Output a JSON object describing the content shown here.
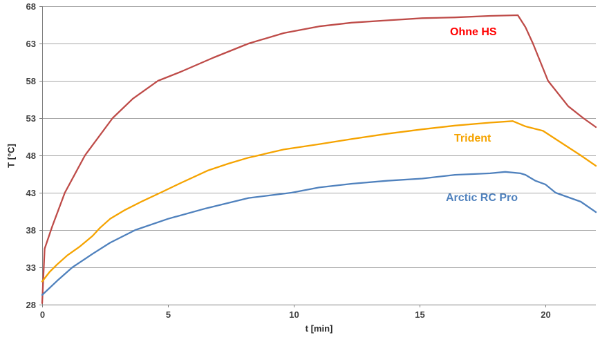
{
  "chart_data": {
    "type": "line",
    "title": "",
    "xlabel": "t [min]",
    "ylabel": "T [°C]",
    "xlim": [
      0,
      22
    ],
    "ylim": [
      28,
      68
    ],
    "xticks": [
      0,
      5,
      10,
      15,
      20
    ],
    "yticks": [
      28,
      33,
      38,
      43,
      48,
      53,
      58,
      63,
      68
    ],
    "grid": "horizontal",
    "legend_position": "inline-labels-on-chart",
    "colors": {
      "grid": "#a6a6a6",
      "axis": "#7f7f7f",
      "tick_text": "#404040"
    },
    "series": [
      {
        "name": "Ohne HS",
        "color": "#be4b48",
        "label_color": "#ff0000",
        "points": [
          [
            0,
            28.2
          ],
          [
            0.1,
            35.5
          ],
          [
            0.4,
            38.5
          ],
          [
            0.9,
            43
          ],
          [
            1.7,
            48
          ],
          [
            2.8,
            53
          ],
          [
            3.6,
            55.6
          ],
          [
            4.6,
            58
          ],
          [
            5.5,
            59.2
          ],
          [
            6.8,
            61.1
          ],
          [
            8.2,
            63
          ],
          [
            9.6,
            64.4
          ],
          [
            11,
            65.3
          ],
          [
            12.3,
            65.8
          ],
          [
            13.7,
            66.1
          ],
          [
            15.1,
            66.4
          ],
          [
            16.4,
            66.5
          ],
          [
            17.8,
            66.7
          ],
          [
            18.9,
            66.8
          ],
          [
            19.2,
            65.2
          ],
          [
            19.5,
            63
          ],
          [
            20.1,
            58
          ],
          [
            20.9,
            54.6
          ],
          [
            21.5,
            53
          ],
          [
            22,
            51.8
          ]
        ]
      },
      {
        "name": "Trident",
        "color": "#f5a300",
        "label_color": "#f5a300",
        "points": [
          [
            0,
            31.1
          ],
          [
            0.3,
            32.4
          ],
          [
            0.6,
            33.4
          ],
          [
            1,
            34.6
          ],
          [
            1.5,
            35.8
          ],
          [
            2,
            37.2
          ],
          [
            2.3,
            38.3
          ],
          [
            2.7,
            39.5
          ],
          [
            3.3,
            40.7
          ],
          [
            4,
            41.9
          ],
          [
            4.7,
            43
          ],
          [
            5.5,
            44.3
          ],
          [
            6.6,
            46
          ],
          [
            7.4,
            46.9
          ],
          [
            8.2,
            47.7
          ],
          [
            9.6,
            48.8
          ],
          [
            11,
            49.5
          ],
          [
            12.3,
            50.2
          ],
          [
            13.7,
            50.9
          ],
          [
            15.1,
            51.5
          ],
          [
            16.4,
            52
          ],
          [
            17.8,
            52.4
          ],
          [
            18.7,
            52.6
          ],
          [
            19.2,
            51.9
          ],
          [
            19.9,
            51.3
          ],
          [
            20.9,
            49.1
          ],
          [
            21.4,
            48
          ],
          [
            22,
            46.6
          ]
        ]
      },
      {
        "name": "Arctic RC Pro",
        "color": "#4f81bd",
        "label_color": "#4f81bd",
        "points": [
          [
            0,
            29.3
          ],
          [
            0.6,
            31.2
          ],
          [
            1.2,
            33
          ],
          [
            2,
            34.8
          ],
          [
            2.7,
            36.3
          ],
          [
            3.7,
            38
          ],
          [
            5,
            39.5
          ],
          [
            6.5,
            40.9
          ],
          [
            8.2,
            42.3
          ],
          [
            9.9,
            43
          ],
          [
            11,
            43.7
          ],
          [
            12.3,
            44.2
          ],
          [
            13.7,
            44.6
          ],
          [
            15.1,
            44.9
          ],
          [
            16.4,
            45.4
          ],
          [
            17.8,
            45.6
          ],
          [
            18.4,
            45.8
          ],
          [
            19,
            45.6
          ],
          [
            19.2,
            45.4
          ],
          [
            19.6,
            44.6
          ],
          [
            20,
            44.1
          ],
          [
            20.4,
            43
          ],
          [
            21.4,
            41.8
          ],
          [
            22,
            40.4
          ]
        ]
      }
    ]
  }
}
